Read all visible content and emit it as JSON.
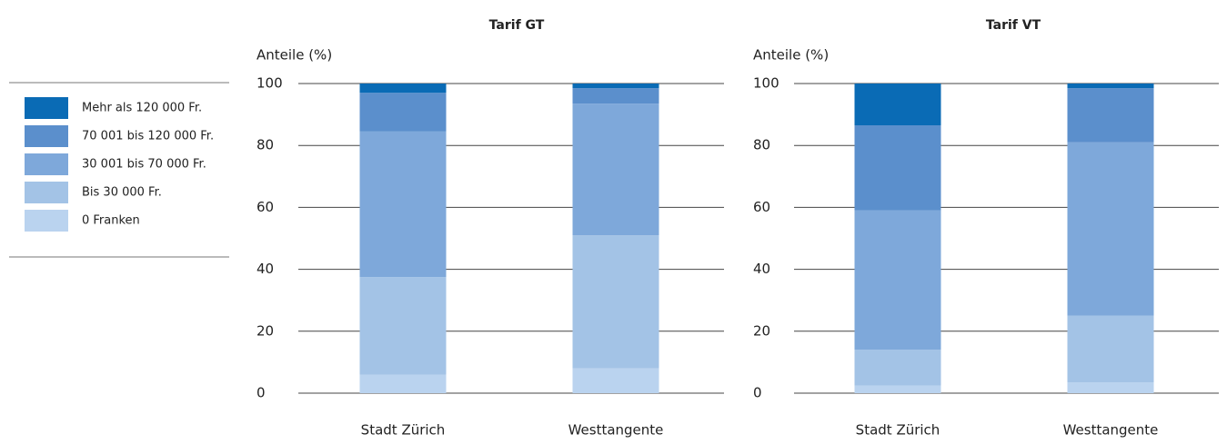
{
  "chart_data": [
    {
      "type": "stacked_bar",
      "title": "Tarif GT",
      "y_label": "Anteile (%)",
      "categories": [
        "Stadt Zürich",
        "Westtangente"
      ],
      "ylim": [
        0,
        100
      ],
      "yticks": [
        0,
        20,
        40,
        60,
        80,
        100
      ],
      "grid": true,
      "series": [
        {
          "name": "0 Franken",
          "color": "#bad3ef",
          "values": [
            6,
            8
          ]
        },
        {
          "name": "Bis 30 000 Fr.",
          "color": "#a3c3e6",
          "values": [
            31.5,
            43
          ]
        },
        {
          "name": "30 001 bis 70 000 Fr.",
          "color": "#7ea8da",
          "values": [
            47,
            42.5
          ]
        },
        {
          "name": "70 001 bis 120 000 Fr.",
          "color": "#5b8fcc",
          "values": [
            12.5,
            5
          ]
        },
        {
          "name": "Mehr als 120 000 Fr.",
          "color": "#0a6bb5",
          "values": [
            3,
            1.5
          ]
        }
      ]
    },
    {
      "type": "stacked_bar",
      "title": "Tarif VT",
      "y_label": "Anteile (%)",
      "categories": [
        "Stadt Zürich",
        "Westtangente"
      ],
      "ylim": [
        0,
        100
      ],
      "yticks": [
        0,
        20,
        40,
        60,
        80,
        100
      ],
      "grid": true,
      "series": [
        {
          "color": "#bad3ef",
          "values": [
            2.5,
            3.5
          ]
        },
        {
          "color": "#a3c3e6",
          "values": [
            11.5,
            21.5
          ]
        },
        {
          "color": "#7ea8da",
          "values": [
            45,
            56
          ]
        },
        {
          "color": "#5b8fcc",
          "values": [
            27.5,
            17.5
          ]
        },
        {
          "color": "#0a6bb5",
          "values": [
            13.5,
            1.5
          ]
        }
      ]
    }
  ]
}
